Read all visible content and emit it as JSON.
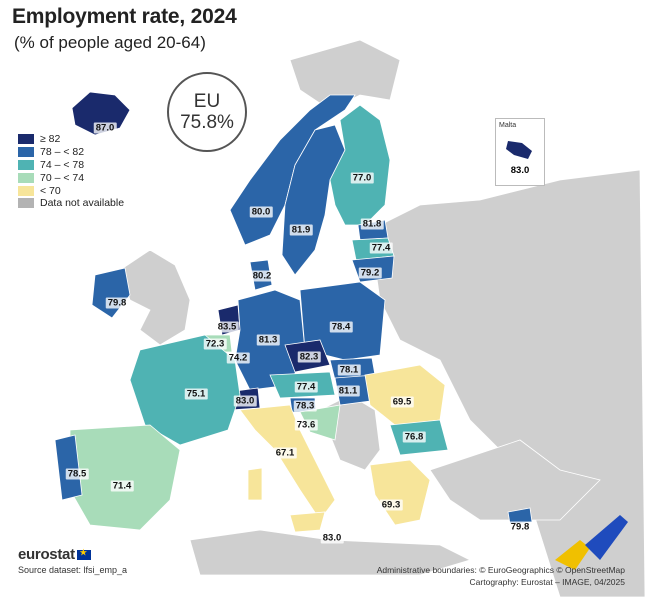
{
  "title": "Employment rate, 2024",
  "subtitle": "(% of people aged 20-64)",
  "eu_badge": {
    "label": "EU",
    "value": "75.8%"
  },
  "legend": [
    {
      "label": "≥ 82",
      "color": "#1a2a6c"
    },
    {
      "label": "78 – < 82",
      "color": "#2b65a8"
    },
    {
      "label": "74 – < 78",
      "color": "#4fb3b3"
    },
    {
      "label": "70 – < 74",
      "color": "#a8dcb9"
    },
    {
      "label": "< 70",
      "color": "#f7e59a"
    },
    {
      "label": "Data not available",
      "color": "#b3b3b3"
    }
  ],
  "map_data": {
    "regions": [
      {
        "name": "Iceland",
        "value": 87.0,
        "label": "87.0",
        "color": "#1a2a6c"
      },
      {
        "name": "Norway",
        "value": 80.0,
        "label": "80.0",
        "color": "#2b65a8"
      },
      {
        "name": "Sweden",
        "value": 81.9,
        "label": "81.9",
        "color": "#2b65a8"
      },
      {
        "name": "Finland",
        "value": 77.0,
        "label": "77.0",
        "color": "#4fb3b3"
      },
      {
        "name": "Estonia",
        "value": 81.8,
        "label": "81.8",
        "color": "#2b65a8"
      },
      {
        "name": "Latvia",
        "value": 77.4,
        "label": "77.4",
        "color": "#4fb3b3"
      },
      {
        "name": "Lithuania",
        "value": 79.2,
        "label": "79.2",
        "color": "#2b65a8"
      },
      {
        "name": "Denmark",
        "value": 80.2,
        "label": "80.2",
        "color": "#2b65a8"
      },
      {
        "name": "Ireland",
        "value": 79.8,
        "label": "79.8",
        "color": "#2b65a8"
      },
      {
        "name": "Netherlands",
        "value": 83.5,
        "label": "83.5",
        "color": "#1a2a6c"
      },
      {
        "name": "Belgium",
        "value": 72.3,
        "label": "72.3",
        "color": "#a8dcb9"
      },
      {
        "name": "Luxembourg",
        "value": 74.2,
        "label": "74.2",
        "color": "#4fb3b3"
      },
      {
        "name": "Germany",
        "value": 81.3,
        "label": "81.3",
        "color": "#2b65a8"
      },
      {
        "name": "Poland",
        "value": 78.4,
        "label": "78.4",
        "color": "#2b65a8"
      },
      {
        "name": "Czechia",
        "value": 82.3,
        "label": "82.3",
        "color": "#1a2a6c"
      },
      {
        "name": "Slovakia",
        "value": 78.1,
        "label": "78.1",
        "color": "#2b65a8"
      },
      {
        "name": "Austria",
        "value": 77.4,
        "label": "77.4",
        "color": "#4fb3b3"
      },
      {
        "name": "Hungary",
        "value": 81.1,
        "label": "81.1",
        "color": "#2b65a8"
      },
      {
        "name": "Switzerland",
        "value": 83.0,
        "label": "83.0",
        "color": "#1a2a6c"
      },
      {
        "name": "France",
        "value": 75.1,
        "label": "75.1",
        "color": "#4fb3b3"
      },
      {
        "name": "Slovenia",
        "value": 78.3,
        "label": "78.3",
        "color": "#2b65a8"
      },
      {
        "name": "Croatia",
        "value": 73.6,
        "label": "73.6",
        "color": "#a8dcb9"
      },
      {
        "name": "Italy",
        "value": 67.1,
        "label": "67.1",
        "color": "#f7e59a"
      },
      {
        "name": "Romania",
        "value": 69.5,
        "label": "69.5",
        "color": "#f7e59a"
      },
      {
        "name": "Bulgaria",
        "value": 76.8,
        "label": "76.8",
        "color": "#4fb3b3"
      },
      {
        "name": "Greece",
        "value": 69.3,
        "label": "69.3",
        "color": "#f7e59a"
      },
      {
        "name": "Spain",
        "value": 71.4,
        "label": "71.4",
        "color": "#a8dcb9"
      },
      {
        "name": "Portugal",
        "value": 78.5,
        "label": "78.5",
        "color": "#2b65a8"
      },
      {
        "name": "Malta",
        "value": 83.0,
        "label": "83.0",
        "color": "#1a2a6c"
      },
      {
        "name": "Cyprus",
        "value": 79.8,
        "label": "79.8",
        "color": "#2b65a8"
      },
      {
        "name": "Sicily",
        "value": 83.0,
        "label": "83.0",
        "color": "#1a2a6c"
      }
    ],
    "malta_inset_title": "Malta"
  },
  "footer": {
    "logo": "eurostat",
    "source": "Source dataset: lfsi_emp_a",
    "boundaries": "Administrative boundaries: © EuroGeographics © OpenStreetMap",
    "cartography": "Cartography: Eurostat – IMAGE, 04/2025"
  }
}
